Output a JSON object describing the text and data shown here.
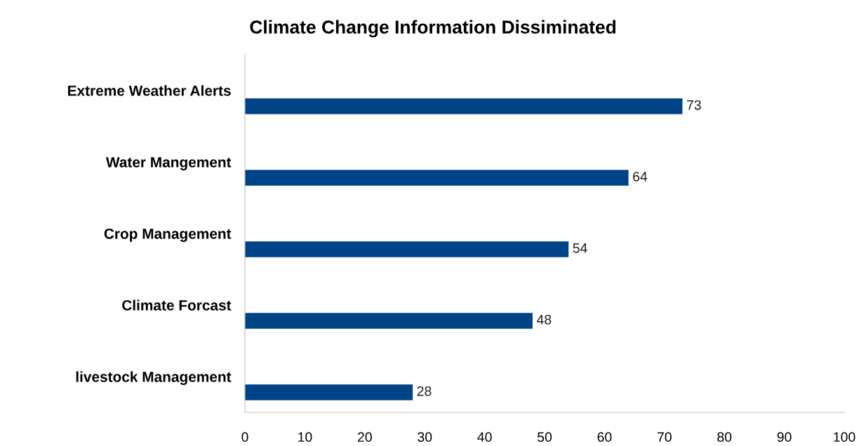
{
  "chart_data": {
    "type": "bar",
    "orientation": "horizontal",
    "title": "Climate Change Information Dissiminated",
    "categories": [
      "Extreme Weather Alerts",
      "Water Mangement",
      "Crop Management",
      "Climate Forcast",
      "livestock Management"
    ],
    "values": [
      73,
      64,
      54,
      48,
      28
    ],
    "color": "#004488",
    "data_labels": true,
    "xlim": [
      0,
      100
    ],
    "xticks": [
      0,
      10,
      20,
      30,
      40,
      50,
      60,
      70,
      80,
      90,
      100
    ],
    "grid": false,
    "legend": false
  }
}
